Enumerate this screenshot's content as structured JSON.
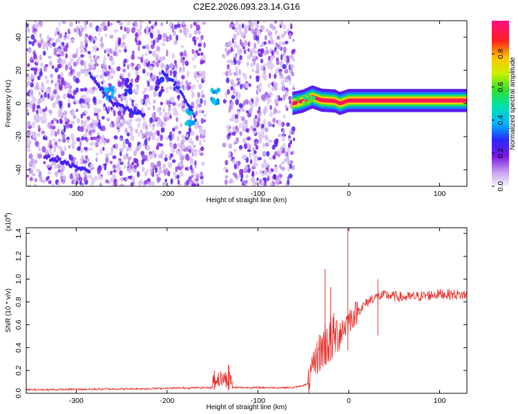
{
  "chart_data": [
    {
      "type": "heatmap",
      "title": "C2E2.2026.093.23.14.G16",
      "xlabel": "Height of straight line (km)",
      "ylabel": "Frequency (Hz)",
      "xlim": [
        -355,
        130
      ],
      "ylim": [
        -50,
        50
      ],
      "x_ticks": [
        -300,
        -200,
        -100,
        0,
        100
      ],
      "y_ticks": [
        -40,
        -20,
        0,
        20,
        40
      ],
      "colorbar": {
        "label": "Normalized spectral amplitude",
        "range": [
          0,
          1
        ],
        "ticks": [
          "0.0",
          "0.2",
          "0.4",
          "0.6",
          "0.8"
        ]
      },
      "features": [
        {
          "kind": "noise",
          "x_range": [
            -355,
            -60
          ],
          "level": 0.18
        },
        {
          "kind": "gap",
          "x_range": [
            -158,
            -138
          ]
        },
        {
          "kind": "track",
          "points": [
            [
              -335,
              -32
            ],
            [
              -300,
              -38
            ],
            [
              -285,
              -42
            ]
          ],
          "level": 0.22
        },
        {
          "kind": "track",
          "points": [
            [
              -285,
              18
            ],
            [
              -260,
              0
            ],
            [
              -225,
              -7
            ]
          ],
          "level": 0.22
        },
        {
          "kind": "track",
          "points": [
            [
              -205,
              20
            ],
            [
              -185,
              8
            ],
            [
              -168,
              -10
            ]
          ],
          "level": 0.25
        },
        {
          "kind": "blob",
          "x": -263,
          "y": 7,
          "level": 0.42
        },
        {
          "kind": "blob",
          "x": -243,
          "y": 10,
          "level": 0.32
        },
        {
          "kind": "blob",
          "x": -208,
          "y": 10,
          "level": 0.3
        },
        {
          "kind": "blob",
          "x": -175,
          "y": -9,
          "level": 0.45
        },
        {
          "kind": "blob",
          "x": -147,
          "y": 4,
          "level": 0.45
        },
        {
          "kind": "signal",
          "x_range": [
            -62,
            130
          ],
          "freq": [
            [
              -62,
              0
            ],
            [
              -50,
              1.5
            ],
            [
              -40,
              4
            ],
            [
              -30,
              2
            ],
            [
              -15,
              1.5
            ],
            [
              -10,
              0
            ],
            [
              0,
              1.8
            ],
            [
              130,
              1.8
            ]
          ],
          "peak_level": 0.95
        }
      ]
    },
    {
      "type": "line",
      "xlabel": "Height of straight line (km)",
      "ylabel": "SNR (10 * v/v)",
      "y_multiplier": "(x10",
      "y_multiplier_exponent": "4",
      "y_multiplier_close": ")",
      "xlim": [
        -355,
        130
      ],
      "ylim": [
        0,
        1.45
      ],
      "x_ticks": [
        -300,
        -200,
        -100,
        0,
        100
      ],
      "y_ticks": [
        "0.0",
        "0.2",
        "0.4",
        "0.6",
        "0.8",
        "1.0",
        "1.2",
        "1.4"
      ],
      "line_color": "#e8302c",
      "series_shape": [
        [
          -355,
          0.03
        ],
        [
          -230,
          0.04
        ],
        [
          -160,
          0.05
        ],
        [
          -60,
          0.05
        ],
        [
          -45,
          0.08
        ],
        [
          -35,
          0.32
        ],
        [
          -25,
          0.45
        ],
        [
          -15,
          0.5
        ],
        [
          -5,
          0.58
        ],
        [
          0,
          0.64
        ],
        [
          10,
          0.72
        ],
        [
          25,
          0.83
        ],
        [
          40,
          0.86
        ],
        [
          60,
          0.84
        ],
        [
          80,
          0.85
        ],
        [
          100,
          0.87
        ],
        [
          130,
          0.86
        ]
      ],
      "spikes": [
        {
          "x": -132,
          "y": 0.24
        },
        {
          "x": -132.5,
          "y": 0.25
        },
        {
          "x": -148,
          "y": 0.2
        },
        {
          "x": -26,
          "y": 1.09
        },
        {
          "x": -20,
          "y": 0.93
        },
        {
          "x": -1,
          "y": 1.45
        },
        {
          "x": 32,
          "y": 1.0
        }
      ]
    }
  ]
}
